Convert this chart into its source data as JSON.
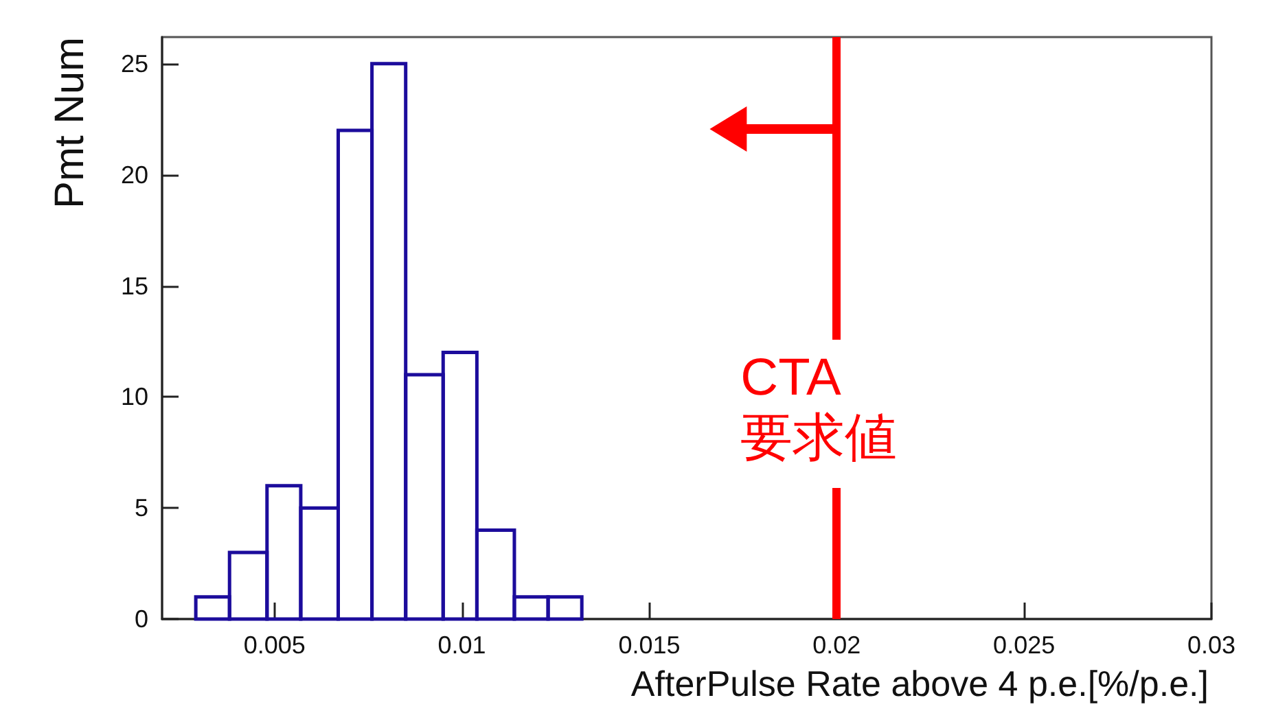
{
  "chart_data": {
    "type": "histogram",
    "xlabel": "AfterPulse Rate above 4 p.e.[%/p.e.]",
    "ylabel": "Pmt Num",
    "bins": [
      0.0029,
      0.0038,
      0.0048,
      0.0057,
      0.0067,
      0.0076,
      0.0085,
      0.0095,
      0.0104,
      0.0114,
      0.0123,
      0.0132
    ],
    "values": [
      1,
      3,
      6,
      5,
      22,
      25,
      11,
      12,
      4,
      1,
      1
    ],
    "color": "#1c0c9c",
    "xlim": [
      0.002,
      0.03
    ],
    "xticks": [
      0.005,
      0.01,
      0.015,
      0.02,
      0.025,
      0.03
    ],
    "ylim": [
      0,
      26.2
    ],
    "yticks": [
      0,
      5,
      10,
      15,
      20,
      25
    ],
    "grid": false,
    "ref_lines": [
      {
        "axis": "x",
        "value": 0.02,
        "label": "CTA\n要求値",
        "color": "#ff0000"
      }
    ]
  }
}
